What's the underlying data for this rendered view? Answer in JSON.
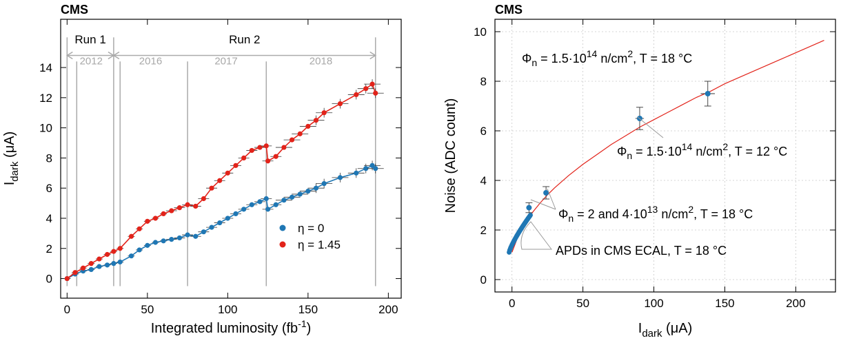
{
  "chart_data": [
    {
      "type": "scatter",
      "experiment_label": "CMS",
      "xlabel": "Integrated luminosity (fb",
      "xlabel_sup": "-1",
      "xlabel_close": ")",
      "ylabel_main": "I",
      "ylabel_sub": "dark",
      "ylabel_unit": " (μA)",
      "xlim": [
        -4,
        208
      ],
      "ylim": [
        -1.3,
        17.2
      ],
      "xticks": [
        0,
        50,
        100,
        150,
        200
      ],
      "yticks": [
        0,
        2,
        4,
        6,
        8,
        10,
        12,
        14
      ],
      "grid": false,
      "legend_position": "bottom-right",
      "run_labels": [
        {
          "text": "Run 1",
          "x_start": 0,
          "x_end": 29
        },
        {
          "text": "Run 2",
          "x_start": 29,
          "x_end": 192
        }
      ],
      "year_labels": [
        {
          "text": "2012",
          "x": 15
        },
        {
          "text": "2016",
          "x": 52
        },
        {
          "text": "2017",
          "x": 99
        },
        {
          "text": "2018",
          "x": 158
        }
      ],
      "period_boundaries": [
        0,
        6,
        29,
        33,
        75,
        124,
        192
      ],
      "series": [
        {
          "name": "η = 0",
          "color": "#1f77b4",
          "x": [
            0,
            5,
            10,
            15,
            20,
            25,
            29,
            33,
            40,
            45,
            50,
            55,
            60,
            65,
            70,
            75,
            80,
            85,
            90,
            95,
            100,
            105,
            110,
            115,
            120,
            124,
            125,
            130,
            135,
            140,
            145,
            150,
            155,
            160,
            170,
            180,
            186,
            190,
            192
          ],
          "y": [
            0,
            0.3,
            0.5,
            0.6,
            0.8,
            0.9,
            1.0,
            1.1,
            1.5,
            1.9,
            2.2,
            2.4,
            2.5,
            2.6,
            2.7,
            2.9,
            2.8,
            3.1,
            3.4,
            3.7,
            4.0,
            4.3,
            4.6,
            4.9,
            5.1,
            5.3,
            4.6,
            4.9,
            5.2,
            5.4,
            5.6,
            5.8,
            6.0,
            6.3,
            6.7,
            7.0,
            7.3,
            7.5,
            7.3
          ]
        },
        {
          "name": "η = 1.45",
          "color": "#e2231a",
          "x": [
            0,
            5,
            10,
            15,
            20,
            25,
            29,
            33,
            40,
            45,
            50,
            55,
            60,
            65,
            70,
            75,
            80,
            85,
            90,
            95,
            100,
            105,
            110,
            115,
            120,
            124,
            125,
            130,
            135,
            140,
            145,
            150,
            155,
            160,
            170,
            180,
            186,
            190,
            192
          ],
          "y": [
            0,
            0.4,
            0.7,
            1.0,
            1.3,
            1.6,
            1.8,
            2.0,
            2.8,
            3.3,
            3.8,
            4.0,
            4.3,
            4.5,
            4.7,
            4.9,
            4.8,
            5.3,
            6.0,
            6.5,
            7.0,
            7.5,
            8.0,
            8.5,
            8.7,
            8.8,
            7.8,
            8.1,
            8.7,
            9.2,
            9.6,
            10.1,
            10.5,
            11.0,
            11.6,
            12.2,
            12.6,
            12.9,
            12.3
          ]
        }
      ]
    },
    {
      "type": "scatter",
      "experiment_label": "CMS",
      "xlabel_main": "I",
      "xlabel_sub": "dark",
      "xlabel_unit": " (μA)",
      "ylabel": "Noise (ADC count)",
      "xlim": [
        -12,
        228
      ],
      "ylim": [
        -0.5,
        10.5
      ],
      "xticks": [
        0,
        50,
        100,
        150,
        200
      ],
      "yticks": [
        0,
        2,
        4,
        6,
        8,
        10
      ],
      "grid": true,
      "curve": {
        "color": "#e2231a",
        "x": [
          0,
          5,
          10,
          15,
          20,
          25,
          30,
          40,
          50,
          60,
          70,
          80,
          90,
          100,
          110,
          120,
          130,
          140,
          150,
          160,
          170,
          180,
          190,
          200,
          210,
          220
        ],
        "y": [
          1.1,
          1.85,
          2.35,
          2.75,
          3.1,
          3.42,
          3.7,
          4.2,
          4.65,
          5.05,
          5.45,
          5.8,
          6.15,
          6.45,
          6.75,
          7.05,
          7.35,
          7.6,
          7.9,
          8.15,
          8.4,
          8.65,
          8.9,
          9.15,
          9.4,
          9.65
        ]
      },
      "points": {
        "color": "#1f77b4",
        "x": [
          12,
          24,
          90,
          138
        ],
        "y": [
          2.9,
          3.5,
          6.5,
          7.5
        ],
        "y_err": [
          0.2,
          0.25,
          0.45,
          0.5
        ],
        "x_err": [
          1,
          1.5,
          3,
          5
        ]
      },
      "dense_band": {
        "color": "#1f77b4",
        "x_start": -2,
        "x_end": 13,
        "y_start": 1.1,
        "y_end": 2.6
      },
      "annotations": [
        {
          "prefix": "Φ",
          "sub": "n",
          "middle": " = 1.5·10",
          "sup": "14",
          "rest": " n/cm",
          "sup2": "2",
          "tail": ", T = 18 °C"
        },
        {
          "prefix": "Φ",
          "sub": "n",
          "middle": " = 1.5·10",
          "sup": "14",
          "rest": " n/cm",
          "sup2": "2",
          "tail": ", T = 12 °C"
        },
        {
          "prefix": "Φ",
          "sub": "n",
          "middle": " = 2 and 4·10",
          "sup": "13",
          "rest": " n/cm",
          "sup2": "2",
          "tail": ", T = 18 °C"
        },
        {
          "text": "APDs in CMS ECAL, T = 18 °C"
        }
      ]
    }
  ]
}
